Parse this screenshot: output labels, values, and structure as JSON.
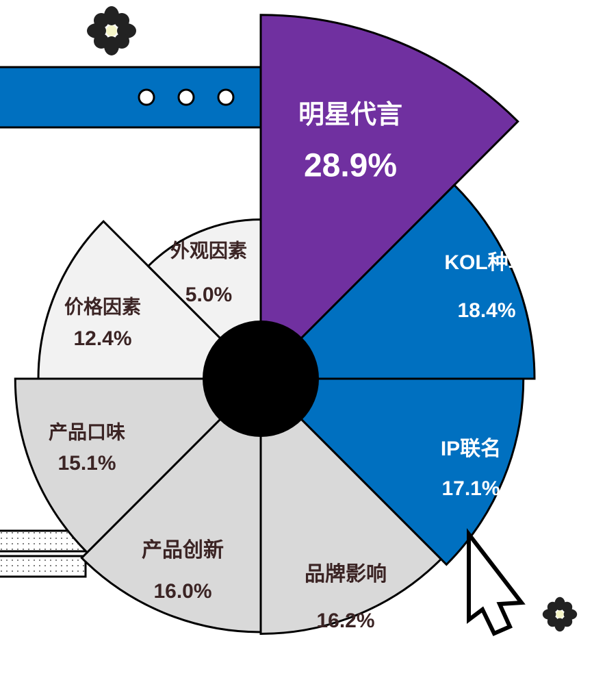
{
  "chart_data": {
    "type": "rose",
    "categories": [
      "明星代言",
      "KOL种草",
      "IP联名",
      "品牌影响",
      "产品创新",
      "产品口味",
      "价格因素",
      "外观因素"
    ],
    "values": [
      28.9,
      18.4,
      17.1,
      16.2,
      16.0,
      15.1,
      12.4,
      5.0
    ],
    "value_labels": [
      "28.9%",
      "18.4%",
      "17.1%",
      "16.2%",
      "16.0%",
      "15.1%",
      "12.4%",
      "5.0%"
    ],
    "colors": [
      "#7030a0",
      "#0070c0",
      "#0070c0",
      "#d9d9d9",
      "#d9d9d9",
      "#d9d9d9",
      "#f2f2f2",
      "#f2f2f2"
    ]
  }
}
